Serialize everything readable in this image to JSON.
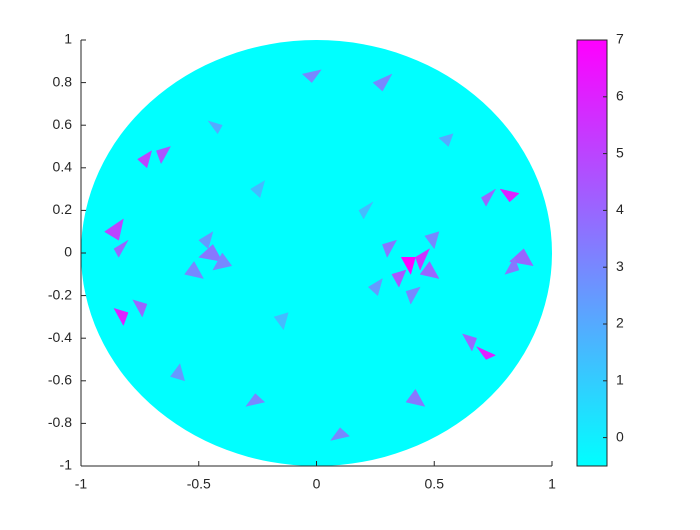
{
  "chart_data": {
    "type": "trimesh",
    "xlim": [
      -1,
      1
    ],
    "ylim": [
      -1,
      1
    ],
    "xticks": [
      -1,
      -0.5,
      0,
      0.5,
      1
    ],
    "yticks": [
      -1,
      -0.8,
      -0.6,
      -0.4,
      -0.2,
      0,
      0.2,
      0.4,
      0.6,
      0.8,
      1
    ],
    "colormap": "cool",
    "clim": [
      -0.5,
      7
    ],
    "colorbar_ticks": [
      0,
      1,
      2,
      3,
      4,
      5,
      6,
      7
    ],
    "triangles": [
      {
        "x": [
          0.36,
          0.42,
          0.4
        ],
        "y": [
          -0.02,
          -0.02,
          -0.1
        ],
        "value": 7
      },
      {
        "x": [
          0.42,
          0.48,
          0.44
        ],
        "y": [
          -0.02,
          0.02,
          -0.08
        ],
        "value": 5.5
      },
      {
        "x": [
          0.32,
          0.38,
          0.35
        ],
        "y": [
          -0.1,
          -0.08,
          -0.16
        ],
        "value": 4.5
      },
      {
        "x": [
          0.44,
          0.52,
          0.48
        ],
        "y": [
          -0.1,
          -0.12,
          -0.04
        ],
        "value": 4
      },
      {
        "x": [
          0.28,
          0.34,
          0.3
        ],
        "y": [
          0.04,
          0.06,
          -0.02
        ],
        "value": 3.5
      },
      {
        "x": [
          0.46,
          0.52,
          0.5
        ],
        "y": [
          0.08,
          0.1,
          0.02
        ],
        "value": 3
      },
      {
        "x": [
          0.38,
          0.44,
          0.4
        ],
        "y": [
          -0.18,
          -0.16,
          -0.24
        ],
        "value": 3
      },
      {
        "x": [
          0.22,
          0.28,
          0.26
        ],
        "y": [
          -0.16,
          -0.12,
          -0.2
        ],
        "value": 2.5
      },
      {
        "x": [
          -0.9,
          -0.82,
          -0.84
        ],
        "y": [
          0.1,
          0.16,
          0.06
        ],
        "value": 5
      },
      {
        "x": [
          -0.86,
          -0.8,
          -0.84
        ],
        "y": [
          0.02,
          0.06,
          -0.02
        ],
        "value": 4
      },
      {
        "x": [
          -0.76,
          -0.7,
          -0.72
        ],
        "y": [
          0.44,
          0.48,
          0.4
        ],
        "value": 5
      },
      {
        "x": [
          -0.68,
          -0.62,
          -0.66
        ],
        "y": [
          0.48,
          0.5,
          0.42
        ],
        "value": 4.5
      },
      {
        "x": [
          -0.86,
          -0.8,
          -0.82
        ],
        "y": [
          -0.26,
          -0.28,
          -0.34
        ],
        "value": 6
      },
      {
        "x": [
          -0.78,
          -0.72,
          -0.74
        ],
        "y": [
          -0.22,
          -0.24,
          -0.3
        ],
        "value": 4
      },
      {
        "x": [
          0.78,
          0.86,
          0.82
        ],
        "y": [
          0.3,
          0.28,
          0.24
        ],
        "value": 6
      },
      {
        "x": [
          0.7,
          0.76,
          0.72
        ],
        "y": [
          0.26,
          0.3,
          0.22
        ],
        "value": 4
      },
      {
        "x": [
          0.68,
          0.76,
          0.72
        ],
        "y": [
          -0.44,
          -0.48,
          -0.5
        ],
        "value": 6
      },
      {
        "x": [
          0.62,
          0.68,
          0.66
        ],
        "y": [
          -0.38,
          -0.4,
          -0.46
        ],
        "value": 4
      },
      {
        "x": [
          0.82,
          0.92,
          0.88
        ],
        "y": [
          -0.04,
          -0.06,
          0.02
        ],
        "value": 4
      },
      {
        "x": [
          0.8,
          0.86,
          0.84
        ],
        "y": [
          -0.1,
          -0.08,
          -0.02
        ],
        "value": 3.5
      },
      {
        "x": [
          -0.5,
          -0.4,
          -0.44
        ],
        "y": [
          -0.02,
          -0.04,
          0.04
        ],
        "value": 3.5
      },
      {
        "x": [
          -0.44,
          -0.36,
          -0.4
        ],
        "y": [
          -0.08,
          -0.06,
          0.0
        ],
        "value": 3
      },
      {
        "x": [
          -0.56,
          -0.48,
          -0.52
        ],
        "y": [
          -0.1,
          -0.12,
          -0.04
        ],
        "value": 3
      },
      {
        "x": [
          -0.5,
          -0.44,
          -0.46
        ],
        "y": [
          0.06,
          0.1,
          0.02
        ],
        "value": 2.5
      },
      {
        "x": [
          -0.06,
          0.02,
          -0.02
        ],
        "y": [
          0.84,
          0.86,
          0.8
        ],
        "value": 3
      },
      {
        "x": [
          0.24,
          0.32,
          0.28
        ],
        "y": [
          0.8,
          0.84,
          0.76
        ],
        "value": 3
      },
      {
        "x": [
          0.38,
          0.46,
          0.42
        ],
        "y": [
          -0.7,
          -0.72,
          -0.64
        ],
        "value": 3.5
      },
      {
        "x": [
          0.06,
          0.14,
          0.1
        ],
        "y": [
          -0.88,
          -0.86,
          -0.82
        ],
        "value": 3
      },
      {
        "x": [
          -0.3,
          -0.22,
          -0.26
        ],
        "y": [
          -0.72,
          -0.7,
          -0.66
        ],
        "value": 3
      },
      {
        "x": [
          -0.62,
          -0.56,
          -0.58
        ],
        "y": [
          -0.58,
          -0.6,
          -0.52
        ],
        "value": 2.5
      },
      {
        "x": [
          0.52,
          0.58,
          0.56
        ],
        "y": [
          0.54,
          0.56,
          0.5
        ],
        "value": 2
      },
      {
        "x": [
          -0.46,
          -0.4,
          -0.42
        ],
        "y": [
          0.62,
          0.6,
          0.56
        ],
        "value": 2
      },
      {
        "x": [
          -0.18,
          -0.12,
          -0.14
        ],
        "y": [
          -0.3,
          -0.28,
          -0.36
        ],
        "value": 1.5
      },
      {
        "x": [
          0.18,
          0.24,
          0.2
        ],
        "y": [
          0.2,
          0.24,
          0.16
        ],
        "value": 1.5
      },
      {
        "x": [
          -0.28,
          -0.22,
          -0.24
        ],
        "y": [
          0.3,
          0.34,
          0.26
        ],
        "value": 1.5
      }
    ]
  }
}
